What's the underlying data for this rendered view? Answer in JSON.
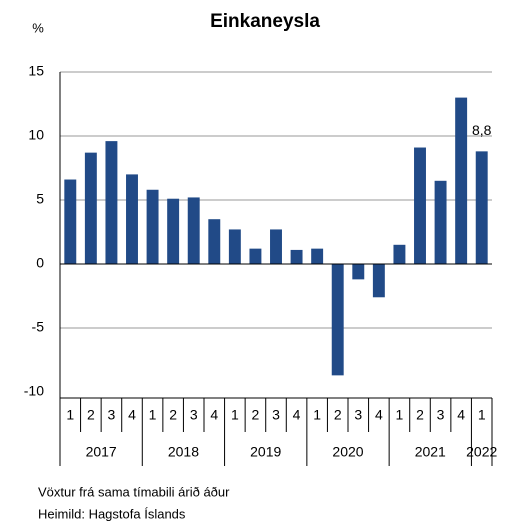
{
  "chart_data": {
    "type": "bar",
    "title": "Einkaneysla",
    "y_unit": "%",
    "groups": [
      {
        "name": "2017",
        "categories": [
          "1",
          "2",
          "3",
          "4"
        ]
      },
      {
        "name": "2018",
        "categories": [
          "1",
          "2",
          "3",
          "4"
        ]
      },
      {
        "name": "2019",
        "categories": [
          "1",
          "2",
          "3",
          "4"
        ]
      },
      {
        "name": "2020",
        "categories": [
          "1",
          "2",
          "3",
          "4"
        ]
      },
      {
        "name": "2021",
        "categories": [
          "1",
          "2",
          "3",
          "4"
        ]
      },
      {
        "name": "2022",
        "categories": [
          "1"
        ]
      }
    ],
    "values": [
      6.6,
      8.7,
      9.6,
      7.0,
      5.8,
      5.1,
      5.2,
      3.5,
      2.7,
      1.2,
      2.7,
      1.1,
      1.2,
      -8.7,
      -1.2,
      -2.6,
      1.5,
      9.1,
      6.5,
      13.0,
      8.8
    ],
    "value_labels": [
      null,
      null,
      null,
      null,
      null,
      null,
      null,
      null,
      null,
      null,
      null,
      null,
      null,
      null,
      null,
      null,
      null,
      null,
      null,
      null,
      "8,8"
    ],
    "color": "#214a87",
    "ylim": [
      -10,
      15
    ],
    "yticks": [
      -10,
      -5,
      0,
      5,
      10,
      15
    ],
    "grid": true,
    "notes": [
      "Vöxtur frá sama tímabili árið áður",
      "Heimild: Hagstofa Íslands"
    ]
  }
}
